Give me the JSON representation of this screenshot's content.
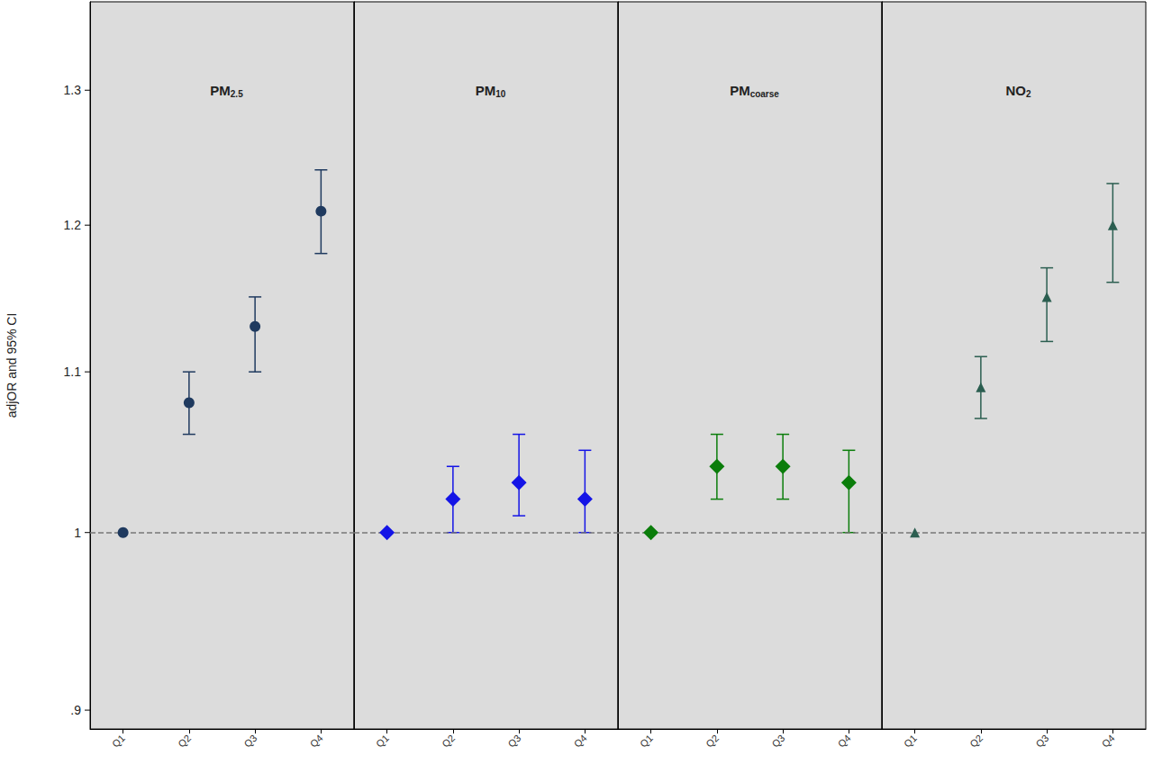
{
  "chart_data": {
    "type": "scatter",
    "y_label": "adjOR and 95% CI",
    "log": "y",
    "grid": false,
    "data_labels": false,
    "categories": [
      "Q1",
      "Q2",
      "Q3",
      "Q4"
    ],
    "ylim": [
      0.89,
      1.37
    ],
    "yticks": [
      {
        "value": 0.9,
        "label": ".9"
      },
      1,
      1.1,
      1.2,
      1.3
    ],
    "reference_line": 1,
    "panels": [
      {
        "title": "PM2.5",
        "color": "#1f3a5f",
        "marker": "circle",
        "values": [
          1.0,
          1.08,
          1.13,
          1.21
        ],
        "ci_lower": [
          null,
          1.06,
          1.1,
          1.18
        ],
        "ci_upper": [
          null,
          1.1,
          1.15,
          1.24
        ]
      },
      {
        "title": "PM10",
        "color": "#1414e6",
        "marker": "diamond",
        "values": [
          1.0,
          1.02,
          1.03,
          1.02
        ],
        "ci_lower": [
          null,
          1.0,
          1.01,
          1.0
        ],
        "ci_upper": [
          null,
          1.04,
          1.06,
          1.05
        ]
      },
      {
        "title": "PMcoarse",
        "color": "#0b7d0b",
        "marker": "diamond",
        "values": [
          1.0,
          1.04,
          1.04,
          1.03
        ],
        "ci_lower": [
          null,
          1.02,
          1.02,
          1.0
        ],
        "ci_upper": [
          null,
          1.06,
          1.06,
          1.05
        ]
      },
      {
        "title": "NO2",
        "color": "#2b5e50",
        "marker": "triangle",
        "values": [
          1.0,
          1.09,
          1.15,
          1.2
        ],
        "ci_lower": [
          null,
          1.07,
          1.12,
          1.16
        ],
        "ci_upper": [
          null,
          1.11,
          1.17,
          1.23
        ]
      }
    ]
  }
}
